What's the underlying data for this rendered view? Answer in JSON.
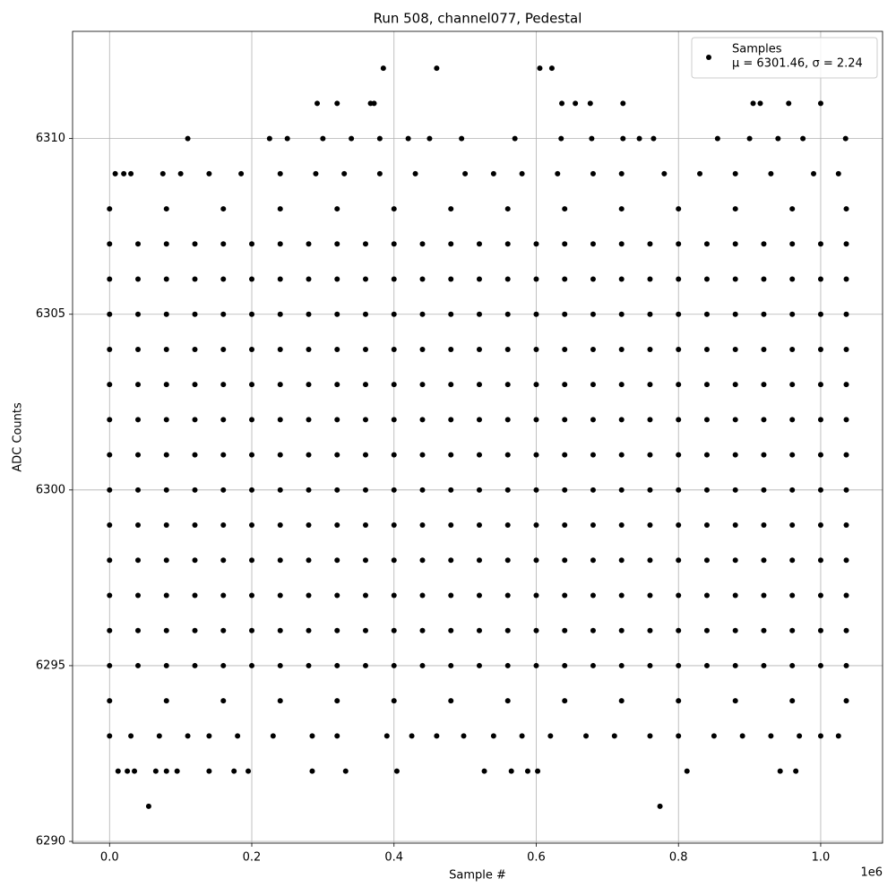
{
  "chart_data": {
    "type": "scatter",
    "title": "Run 508, channel077, Pedestal",
    "x_label": "Sample #",
    "y_label": "ADC Counts",
    "x_offset_label": "1e6",
    "legend_note": "μ = 6301.46, σ = 2.24",
    "legend": "upper right",
    "grid": true,
    "xlim": [
      -52000,
      1087000
    ],
    "ylim": [
      6289.95,
      6313.05
    ],
    "xticks": [
      {
        "value": 0,
        "label": "0.0"
      },
      {
        "value": 200000,
        "label": "0.2"
      },
      {
        "value": 400000,
        "label": "0.4"
      },
      {
        "value": 600000,
        "label": "0.6"
      },
      {
        "value": 800000,
        "label": "0.8"
      },
      {
        "value": 1000000,
        "label": "1.0"
      }
    ],
    "yticks": [
      6290,
      6295,
      6300,
      6305,
      6310
    ],
    "series": [
      {
        "name": "Samples",
        "color": "#000000",
        "x": [
          0,
          40000,
          80000,
          120000,
          160000,
          200000,
          240000,
          280000,
          320000,
          360000,
          400000,
          440000,
          480000,
          520000,
          560000,
          600000,
          640000,
          680000,
          720000,
          760000,
          800000,
          840000,
          880000,
          920000,
          960000,
          1000000,
          1036000,
          0,
          40000,
          80000,
          120000,
          160000,
          200000,
          240000,
          280000,
          320000,
          360000,
          400000,
          440000,
          480000,
          520000,
          560000,
          600000,
          640000,
          680000,
          720000,
          760000,
          800000,
          840000,
          880000,
          920000,
          960000,
          1000000,
          1036000,
          0,
          40000,
          80000,
          120000,
          160000,
          200000,
          240000,
          280000,
          320000,
          360000,
          400000,
          440000,
          480000,
          520000,
          560000,
          600000,
          640000,
          680000,
          720000,
          760000,
          800000,
          840000,
          880000,
          920000,
          960000,
          1000000,
          1036000,
          0,
          40000,
          80000,
          120000,
          160000,
          200000,
          240000,
          280000,
          320000,
          360000,
          400000,
          440000,
          480000,
          520000,
          560000,
          600000,
          640000,
          680000,
          720000,
          760000,
          800000,
          840000,
          880000,
          920000,
          960000,
          1000000,
          1036000,
          0,
          40000,
          80000,
          120000,
          160000,
          200000,
          240000,
          280000,
          320000,
          360000,
          400000,
          440000,
          480000,
          520000,
          560000,
          600000,
          640000,
          680000,
          720000,
          760000,
          800000,
          840000,
          880000,
          920000,
          960000,
          1000000,
          1036000,
          0,
          40000,
          80000,
          120000,
          160000,
          200000,
          240000,
          280000,
          320000,
          360000,
          400000,
          440000,
          480000,
          520000,
          560000,
          600000,
          640000,
          680000,
          720000,
          760000,
          800000,
          840000,
          880000,
          920000,
          960000,
          1000000,
          1036000,
          0,
          40000,
          80000,
          120000,
          160000,
          200000,
          240000,
          280000,
          320000,
          360000,
          400000,
          440000,
          480000,
          520000,
          560000,
          600000,
          640000,
          680000,
          720000,
          760000,
          800000,
          840000,
          880000,
          920000,
          960000,
          1000000,
          1036000,
          0,
          40000,
          80000,
          120000,
          160000,
          200000,
          240000,
          280000,
          320000,
          360000,
          400000,
          440000,
          480000,
          520000,
          560000,
          600000,
          640000,
          680000,
          720000,
          760000,
          800000,
          840000,
          880000,
          920000,
          960000,
          1000000,
          1036000,
          0,
          40000,
          80000,
          120000,
          160000,
          200000,
          240000,
          280000,
          320000,
          360000,
          400000,
          440000,
          480000,
          520000,
          560000,
          600000,
          640000,
          680000,
          720000,
          760000,
          800000,
          840000,
          880000,
          920000,
          960000,
          1000000,
          1036000,
          0,
          40000,
          80000,
          120000,
          160000,
          200000,
          240000,
          280000,
          320000,
          360000,
          400000,
          440000,
          480000,
          520000,
          560000,
          600000,
          640000,
          680000,
          720000,
          760000,
          800000,
          840000,
          880000,
          920000,
          960000,
          1000000,
          1036000,
          0,
          40000,
          80000,
          120000,
          160000,
          200000,
          240000,
          280000,
          320000,
          360000,
          400000,
          440000,
          480000,
          520000,
          560000,
          600000,
          640000,
          680000,
          720000,
          760000,
          800000,
          840000,
          880000,
          920000,
          960000,
          1000000,
          1036000,
          0,
          40000,
          80000,
          120000,
          160000,
          200000,
          240000,
          280000,
          320000,
          360000,
          400000,
          440000,
          480000,
          520000,
          560000,
          600000,
          640000,
          680000,
          720000,
          760000,
          800000,
          840000,
          880000,
          920000,
          960000,
          1000000,
          1036000,
          0,
          40000,
          80000,
          120000,
          160000,
          200000,
          240000,
          280000,
          320000,
          360000,
          400000,
          440000,
          480000,
          520000,
          560000,
          600000,
          640000,
          680000,
          720000,
          760000,
          800000,
          840000,
          880000,
          920000,
          960000,
          1000000,
          1036000,
          0,
          80000,
          160000,
          240000,
          320000,
          400000,
          480000,
          560000,
          640000,
          720000,
          800000,
          880000,
          960000,
          1036000,
          0,
          80000,
          160000,
          240000,
          320000,
          400000,
          480000,
          560000,
          640000,
          720000,
          800000,
          880000,
          960000,
          1036000,
          385000,
          460000,
          605000,
          622000,
          292000,
          320000,
          367000,
          372000,
          636000,
          655000,
          676000,
          722000,
          905000,
          915000,
          955000,
          1000000,
          110000,
          225000,
          250000,
          300000,
          340000,
          380000,
          420000,
          450000,
          495000,
          570000,
          635000,
          678000,
          722000,
          745000,
          765000,
          855000,
          900000,
          940000,
          975000,
          1035000,
          8000,
          20000,
          30000,
          75000,
          100000,
          140000,
          185000,
          240000,
          290000,
          330000,
          380000,
          430000,
          500000,
          540000,
          580000,
          630000,
          680000,
          720000,
          780000,
          830000,
          880000,
          930000,
          990000,
          1025000,
          0,
          30000,
          70000,
          110000,
          140000,
          180000,
          230000,
          285000,
          320000,
          390000,
          425000,
          460000,
          498000,
          540000,
          580000,
          620000,
          670000,
          710000,
          760000,
          800000,
          850000,
          890000,
          930000,
          970000,
          1000000,
          1025000,
          12000,
          25000,
          35000,
          65000,
          80000,
          95000,
          140000,
          175000,
          195000,
          285000,
          332000,
          404000,
          527000,
          565000,
          588000,
          602000,
          812000,
          943000,
          965000,
          55000,
          774000
        ],
        "values": [
          6307,
          6307,
          6307,
          6307,
          6307,
          6307,
          6307,
          6307,
          6307,
          6307,
          6307,
          6307,
          6307,
          6307,
          6307,
          6307,
          6307,
          6307,
          6307,
          6307,
          6307,
          6307,
          6307,
          6307,
          6307,
          6307,
          6307,
          6306,
          6306,
          6306,
          6306,
          6306,
          6306,
          6306,
          6306,
          6306,
          6306,
          6306,
          6306,
          6306,
          6306,
          6306,
          6306,
          6306,
          6306,
          6306,
          6306,
          6306,
          6306,
          6306,
          6306,
          6306,
          6306,
          6306,
          6305,
          6305,
          6305,
          6305,
          6305,
          6305,
          6305,
          6305,
          6305,
          6305,
          6305,
          6305,
          6305,
          6305,
          6305,
          6305,
          6305,
          6305,
          6305,
          6305,
          6305,
          6305,
          6305,
          6305,
          6305,
          6305,
          6305,
          6304,
          6304,
          6304,
          6304,
          6304,
          6304,
          6304,
          6304,
          6304,
          6304,
          6304,
          6304,
          6304,
          6304,
          6304,
          6304,
          6304,
          6304,
          6304,
          6304,
          6304,
          6304,
          6304,
          6304,
          6304,
          6304,
          6304,
          6303,
          6303,
          6303,
          6303,
          6303,
          6303,
          6303,
          6303,
          6303,
          6303,
          6303,
          6303,
          6303,
          6303,
          6303,
          6303,
          6303,
          6303,
          6303,
          6303,
          6303,
          6303,
          6303,
          6303,
          6303,
          6303,
          6303,
          6302,
          6302,
          6302,
          6302,
          6302,
          6302,
          6302,
          6302,
          6302,
          6302,
          6302,
          6302,
          6302,
          6302,
          6302,
          6302,
          6302,
          6302,
          6302,
          6302,
          6302,
          6302,
          6302,
          6302,
          6302,
          6302,
          6302,
          6301,
          6301,
          6301,
          6301,
          6301,
          6301,
          6301,
          6301,
          6301,
          6301,
          6301,
          6301,
          6301,
          6301,
          6301,
          6301,
          6301,
          6301,
          6301,
          6301,
          6301,
          6301,
          6301,
          6301,
          6301,
          6301,
          6301,
          6300,
          6300,
          6300,
          6300,
          6300,
          6300,
          6300,
          6300,
          6300,
          6300,
          6300,
          6300,
          6300,
          6300,
          6300,
          6300,
          6300,
          6300,
          6300,
          6300,
          6300,
          6300,
          6300,
          6300,
          6300,
          6300,
          6300,
          6299,
          6299,
          6299,
          6299,
          6299,
          6299,
          6299,
          6299,
          6299,
          6299,
          6299,
          6299,
          6299,
          6299,
          6299,
          6299,
          6299,
          6299,
          6299,
          6299,
          6299,
          6299,
          6299,
          6299,
          6299,
          6299,
          6299,
          6298,
          6298,
          6298,
          6298,
          6298,
          6298,
          6298,
          6298,
          6298,
          6298,
          6298,
          6298,
          6298,
          6298,
          6298,
          6298,
          6298,
          6298,
          6298,
          6298,
          6298,
          6298,
          6298,
          6298,
          6298,
          6298,
          6298,
          6297,
          6297,
          6297,
          6297,
          6297,
          6297,
          6297,
          6297,
          6297,
          6297,
          6297,
          6297,
          6297,
          6297,
          6297,
          6297,
          6297,
          6297,
          6297,
          6297,
          6297,
          6297,
          6297,
          6297,
          6297,
          6297,
          6297,
          6296,
          6296,
          6296,
          6296,
          6296,
          6296,
          6296,
          6296,
          6296,
          6296,
          6296,
          6296,
          6296,
          6296,
          6296,
          6296,
          6296,
          6296,
          6296,
          6296,
          6296,
          6296,
          6296,
          6296,
          6296,
          6296,
          6296,
          6295,
          6295,
          6295,
          6295,
          6295,
          6295,
          6295,
          6295,
          6295,
          6295,
          6295,
          6295,
          6295,
          6295,
          6295,
          6295,
          6295,
          6295,
          6295,
          6295,
          6295,
          6295,
          6295,
          6295,
          6295,
          6295,
          6295,
          6308,
          6308,
          6308,
          6308,
          6308,
          6308,
          6308,
          6308,
          6308,
          6308,
          6308,
          6308,
          6308,
          6308,
          6294,
          6294,
          6294,
          6294,
          6294,
          6294,
          6294,
          6294,
          6294,
          6294,
          6294,
          6294,
          6294,
          6294,
          6312,
          6312,
          6312,
          6312,
          6311,
          6311,
          6311,
          6311,
          6311,
          6311,
          6311,
          6311,
          6311,
          6311,
          6311,
          6311,
          6310,
          6310,
          6310,
          6310,
          6310,
          6310,
          6310,
          6310,
          6310,
          6310,
          6310,
          6310,
          6310,
          6310,
          6310,
          6310,
          6310,
          6310,
          6310,
          6310,
          6309,
          6309,
          6309,
          6309,
          6309,
          6309,
          6309,
          6309,
          6309,
          6309,
          6309,
          6309,
          6309,
          6309,
          6309,
          6309,
          6309,
          6309,
          6309,
          6309,
          6309,
          6309,
          6309,
          6309,
          6293,
          6293,
          6293,
          6293,
          6293,
          6293,
          6293,
          6293,
          6293,
          6293,
          6293,
          6293,
          6293,
          6293,
          6293,
          6293,
          6293,
          6293,
          6293,
          6293,
          6293,
          6293,
          6293,
          6293,
          6293,
          6293,
          6292,
          6292,
          6292,
          6292,
          6292,
          6292,
          6292,
          6292,
          6292,
          6292,
          6292,
          6292,
          6292,
          6292,
          6292,
          6292,
          6292,
          6292,
          6292,
          6291,
          6291
        ]
      }
    ]
  }
}
